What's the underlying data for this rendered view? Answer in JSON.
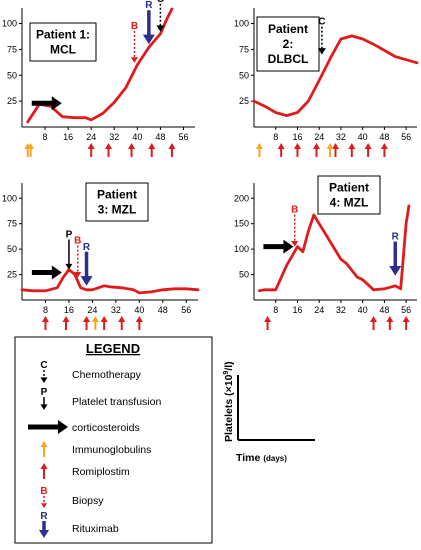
{
  "colors": {
    "line": "#e01b1b",
    "romiplostim": "#e01b1b",
    "immunoglobulins": "#f5a623",
    "biopsy": "#e01b1b",
    "biopsy_letter": "#e01b1b",
    "rituximab": "#2e2e8f",
    "chemotherapy": "#000000",
    "platelet": "#000000",
    "corticosteroids": "#000000"
  },
  "chart_data": [
    {
      "type": "line",
      "title": "Patient 1: MCL",
      "title_lines": [
        "Patient 1:",
        "MCL"
      ],
      "x_ticks": [
        8,
        16,
        24,
        32,
        40,
        48,
        56
      ],
      "y_ticks": [
        25,
        50,
        75,
        100
      ],
      "xlim": [
        0,
        60
      ],
      "ylim": [
        0,
        115
      ],
      "series": [
        {
          "x": [
            2,
            6,
            10,
            14,
            18,
            22,
            24,
            28,
            32,
            36,
            40,
            44,
            48,
            50,
            52
          ],
          "y": [
            5,
            22,
            20,
            10,
            9,
            9,
            7,
            13,
            24,
            38,
            60,
            77,
            90,
            103,
            114
          ]
        }
      ],
      "annotations": [
        {
          "kind": "corticosteroids",
          "x": 2,
          "y": 23
        },
        {
          "kind": "biopsy",
          "x": 39,
          "y": 62,
          "label": "B"
        },
        {
          "kind": "rituximab",
          "x": 44,
          "y": 80,
          "label": "R"
        },
        {
          "kind": "chemotherapy",
          "x": 48,
          "y": 92,
          "label": "C"
        }
      ],
      "romiplostim_days": [
        24,
        30,
        38,
        45,
        52
      ],
      "immunoglobulin_days": [
        2,
        3
      ]
    },
    {
      "type": "line",
      "title": "Patient 2: DLBCL",
      "title_lines": [
        "Patient",
        "2:",
        "DLBCL"
      ],
      "x_ticks": [
        8,
        16,
        24,
        32,
        40,
        48,
        56
      ],
      "y_ticks": [
        25,
        50,
        75,
        100
      ],
      "xlim": [
        0,
        60
      ],
      "ylim": [
        0,
        115
      ],
      "series": [
        {
          "x": [
            0,
            4,
            8,
            12,
            16,
            20,
            24,
            28,
            32,
            36,
            40,
            44,
            48,
            52,
            56,
            60
          ],
          "y": [
            25,
            20,
            14,
            11,
            14,
            25,
            45,
            66,
            85,
            88,
            85,
            80,
            74,
            68,
            65,
            62
          ]
        }
      ],
      "annotations": [
        {
          "kind": "chemotherapy",
          "x": 25,
          "y": 70,
          "label": "C"
        }
      ],
      "romiplostim_days": [
        10,
        16,
        23,
        30,
        36,
        42,
        48
      ],
      "immunoglobulin_days": [
        2,
        28
      ]
    },
    {
      "type": "line",
      "title": "Patient 3: MZL",
      "title_lines": [
        "Patient",
        "3: MZL"
      ],
      "x_ticks": [
        8,
        16,
        24,
        32,
        40,
        48,
        56
      ],
      "y_ticks": [
        25,
        50,
        75,
        100
      ],
      "xlim": [
        0,
        60
      ],
      "ylim": [
        0,
        115
      ],
      "series": [
        {
          "x": [
            0,
            4,
            8,
            12,
            14,
            16,
            18,
            20,
            22,
            24,
            28,
            30,
            34,
            38,
            40,
            44,
            48,
            52,
            56,
            60
          ],
          "y": [
            10,
            9,
            9,
            12,
            22,
            30,
            25,
            12,
            10,
            10,
            14,
            13,
            12,
            10,
            7,
            8,
            10,
            11,
            11,
            10
          ]
        }
      ],
      "annotations": [
        {
          "kind": "corticosteroids",
          "x": 2,
          "y": 27
        },
        {
          "kind": "platelet",
          "x": 16,
          "y": 30,
          "label": "P"
        },
        {
          "kind": "biopsy",
          "x": 19,
          "y": 22,
          "label": "B"
        },
        {
          "kind": "rituximab",
          "x": 22,
          "y": 14,
          "label": "R"
        }
      ],
      "romiplostim_days": [
        8,
        15,
        22,
        28,
        34,
        40
      ],
      "immunoglobulin_days": [
        25
      ]
    },
    {
      "type": "line",
      "title": "Patient 4: MZL",
      "title_lines": [
        "Patient",
        "4: MZL"
      ],
      "x_ticks": [
        8,
        16,
        24,
        32,
        40,
        48,
        56
      ],
      "y_ticks": [
        50,
        100,
        150,
        200
      ],
      "xlim": [
        0,
        60
      ],
      "ylim": [
        0,
        230
      ],
      "series": [
        {
          "x": [
            2,
            4,
            8,
            12,
            16,
            18,
            20,
            22,
            24,
            28,
            32,
            34,
            38,
            40,
            44,
            48,
            52,
            54,
            56,
            57
          ],
          "y": [
            18,
            20,
            20,
            68,
            105,
            95,
            135,
            167,
            150,
            115,
            80,
            72,
            45,
            40,
            20,
            22,
            28,
            22,
            150,
            185
          ]
        }
      ],
      "annotations": [
        {
          "kind": "corticosteroids",
          "x": 2,
          "y": 105
        },
        {
          "kind": "biopsy",
          "x": 15,
          "y": 105,
          "label": "B"
        },
        {
          "kind": "rituximab",
          "x": 52,
          "y": 48,
          "label": "R"
        }
      ],
      "romiplostim_days": [
        5,
        44,
        50,
        56
      ],
      "immunoglobulin_days": []
    }
  ],
  "legend": {
    "title": "LEGEND",
    "items": [
      {
        "kind": "chemotherapy",
        "letter": "C",
        "label": "Chemotherapy"
      },
      {
        "kind": "platelet",
        "letter": "P",
        "label": "Platelet transfusion"
      },
      {
        "kind": "corticosteroids",
        "letter": "",
        "label": "corticosteroids"
      },
      {
        "kind": "immunoglobulins",
        "letter": "",
        "label": "Immunoglobulins"
      },
      {
        "kind": "romiplostim",
        "letter": "",
        "label": "Romiplostim"
      },
      {
        "kind": "biopsy",
        "letter": "B",
        "label": "Biopsy"
      },
      {
        "kind": "rituximab",
        "letter": "R",
        "label": "Rituximab"
      }
    ]
  },
  "axis_key": {
    "ylabel_main": "Platelets (×10",
    "ylabel_sup": "9",
    "ylabel_tail": "/l)",
    "xlabel": "Time",
    "xunit": "(days)"
  }
}
